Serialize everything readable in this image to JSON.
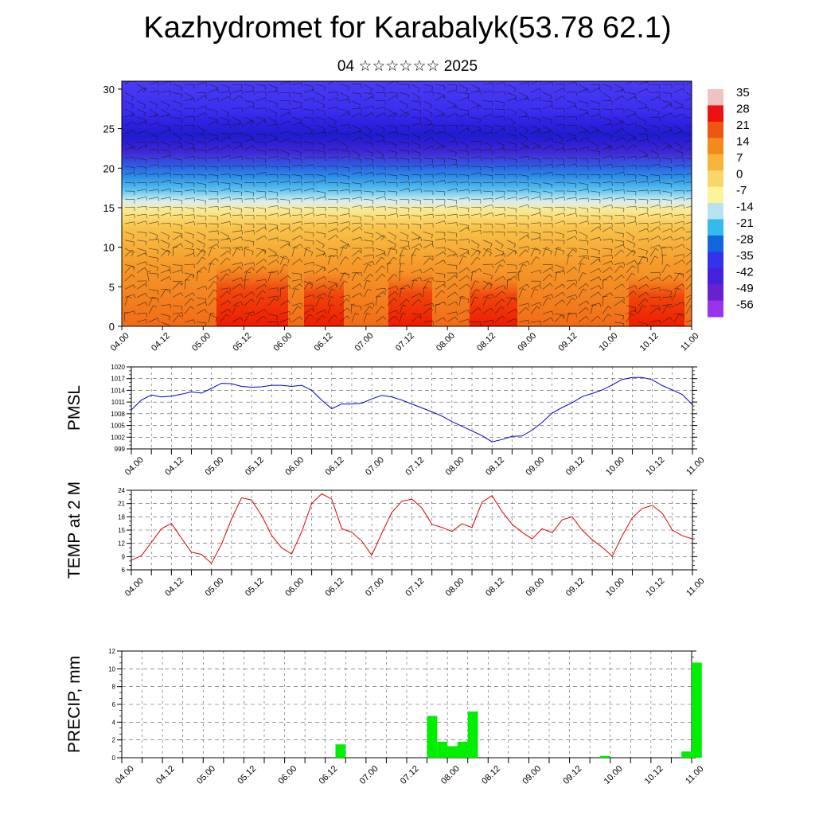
{
  "header": {
    "title": "Kazhydromet for Karabalyk(53.78 62.1)",
    "subtitle": "04 ☆☆☆☆☆☆ 2025"
  },
  "time_ticks": [
    "04.00",
    "04.12",
    "05.00",
    "05.12",
    "06.00",
    "06.12",
    "07.00",
    "07.12",
    "08.00",
    "08.12",
    "09.00",
    "09.12",
    "10.00",
    "10.12",
    "11.00"
  ],
  "colors": {
    "pmsl_line": "#0000cc",
    "temp_line": "#dd0000",
    "precip_bar": "#00ee00"
  },
  "chart_data": [
    {
      "type": "heatmap",
      "name": "cross-section",
      "x": [
        "04.00",
        "04.12",
        "05.00",
        "05.12",
        "06.00",
        "06.12",
        "07.00",
        "07.12",
        "08.00",
        "08.12",
        "09.00",
        "09.12",
        "10.00",
        "10.12",
        "11.00"
      ],
      "ylim": [
        0,
        31
      ],
      "y_ticks": [
        0,
        5,
        10,
        15,
        20,
        25,
        30
      ],
      "colorbar_labels": [
        "35",
        "28",
        "21",
        "14",
        "7",
        "0",
        "-7",
        "-14",
        "-21",
        "-28",
        "-35",
        "-42",
        "-49",
        "-56"
      ],
      "colorbar_colors": [
        "#f2c2c2",
        "#ee1111",
        "#ee5511",
        "#f58a1c",
        "#f8b43a",
        "#f9d66a",
        "#fdf39c",
        "#b7e3f0",
        "#33bbee",
        "#1166dd",
        "#3333ee",
        "#4422dd",
        "#6622cc",
        "#9933ee"
      ],
      "grid": false
    },
    {
      "type": "line",
      "ylabel": "PMSL",
      "ylim": [
        999,
        1020
      ],
      "y_ticks": [
        999,
        1002,
        1005,
        1008,
        1011,
        1014,
        1017,
        1020
      ],
      "x": [
        0,
        3,
        6,
        9,
        12,
        15,
        18,
        21,
        24,
        27,
        30,
        33,
        36,
        39,
        42,
        45,
        48,
        51,
        54,
        57,
        60,
        63,
        66,
        69,
        72,
        75,
        78,
        81,
        84,
        87,
        90,
        93,
        96,
        99,
        102,
        105,
        108,
        111,
        114,
        117,
        120,
        123,
        126,
        129,
        132,
        135,
        138,
        141,
        144,
        147,
        150,
        153,
        156,
        159,
        162,
        165,
        168
      ],
      "values": [
        1009.0,
        1011.5,
        1012.8,
        1012.3,
        1012.5,
        1013.0,
        1013.6,
        1013.3,
        1014.5,
        1015.8,
        1015.7,
        1015.0,
        1014.8,
        1014.9,
        1015.3,
        1015.3,
        1015.0,
        1015.3,
        1014.0,
        1011.5,
        1009.3,
        1010.5,
        1010.5,
        1010.7,
        1011.8,
        1012.7,
        1012.3,
        1011.5,
        1010.5,
        1009.5,
        1008.5,
        1007.4,
        1006.0,
        1004.8,
        1003.6,
        1002.4,
        1000.8,
        1001.4,
        1002.2,
        1002.3,
        1003.8,
        1005.8,
        1008.2,
        1009.6,
        1010.8,
        1012.4,
        1013.2,
        1014.1,
        1015.4,
        1016.8,
        1017.3,
        1017.3,
        1016.7,
        1015.2,
        1014.1,
        1012.9,
        1010.3
      ],
      "grid": true
    },
    {
      "type": "line",
      "ylabel": "TEMP at 2 M",
      "ylim": [
        6,
        24
      ],
      "y_ticks": [
        6,
        9,
        12,
        15,
        18,
        21,
        24
      ],
      "x": [
        0,
        3,
        6,
        9,
        12,
        15,
        18,
        21,
        24,
        27,
        30,
        33,
        36,
        39,
        42,
        45,
        48,
        51,
        54,
        57,
        60,
        63,
        66,
        69,
        72,
        75,
        78,
        81,
        84,
        87,
        90,
        93,
        96,
        99,
        102,
        105,
        108,
        111,
        114,
        117,
        120,
        123,
        126,
        129,
        132,
        135,
        138,
        141,
        144,
        147,
        150,
        153,
        156,
        159,
        162,
        165,
        168
      ],
      "values": [
        8.2,
        9.2,
        12.2,
        15.3,
        16.5,
        13.2,
        10.0,
        9.5,
        7.5,
        11.8,
        17.5,
        22.3,
        21.8,
        18.3,
        13.8,
        11.0,
        9.6,
        14.6,
        21.0,
        23.2,
        22.0,
        15.3,
        14.5,
        12.5,
        9.3,
        14.3,
        19.0,
        21.5,
        22.0,
        20.0,
        16.3,
        15.6,
        14.7,
        16.4,
        15.6,
        21.3,
        22.8,
        19.2,
        16.3,
        14.5,
        13.0,
        15.3,
        14.4,
        17.3,
        18.0,
        15.0,
        12.8,
        11.1,
        9.1,
        13.8,
        17.8,
        19.9,
        20.6,
        18.8,
        15.0,
        13.7,
        13.0
      ],
      "grid": true
    },
    {
      "type": "bar",
      "ylabel": "PRECIP, mm",
      "ylim": [
        0,
        12
      ],
      "y_ticks": [
        0,
        2,
        4,
        6,
        8,
        10,
        12
      ],
      "bars": [
        {
          "start": 63,
          "end": 66,
          "value": 1.5
        },
        {
          "start": 90,
          "end": 93,
          "value": 4.7
        },
        {
          "start": 93,
          "end": 96,
          "value": 1.8
        },
        {
          "start": 96,
          "end": 99,
          "value": 1.3
        },
        {
          "start": 99,
          "end": 102,
          "value": 1.8
        },
        {
          "start": 102,
          "end": 105,
          "value": 5.2
        },
        {
          "start": 141,
          "end": 144,
          "value": 0.2
        },
        {
          "start": 165,
          "end": 168,
          "value": 0.7
        },
        {
          "start": 168,
          "end": 171,
          "value": 10.7
        }
      ],
      "grid": true
    }
  ]
}
